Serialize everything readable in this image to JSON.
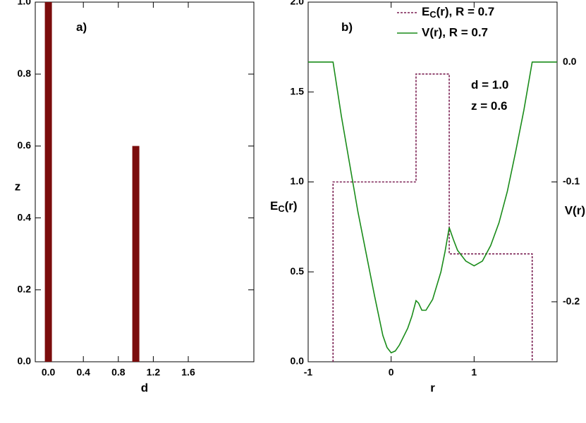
{
  "chart_data": [
    {
      "type": "bar",
      "x": [
        0,
        1.0
      ],
      "values": [
        1.0,
        0.6
      ],
      "color": "#7b0c0c",
      "xlim": [
        -0.15,
        2.35
      ],
      "ylim": [
        0,
        1
      ],
      "xticks": [
        {
          "value": 0,
          "label": "0.0"
        },
        0.4,
        0.8,
        1.2,
        1.6
      ],
      "yticks": [
        {
          "value": 0,
          "label": "0.0"
        },
        0.2,
        0.4,
        0.6,
        0.8,
        {
          "value": 1,
          "label": "1.0"
        }
      ],
      "xlabel": "d",
      "ylabel": "z",
      "annotations": [
        "a)"
      ]
    },
    {
      "type": "line",
      "xlim": [
        -1,
        2
      ],
      "ylim": [
        0,
        2
      ],
      "y2lim": [
        -0.25,
        0.05
      ],
      "xticks": [
        -1,
        0,
        1
      ],
      "yticks": [
        {
          "value": 0,
          "label": "0.0"
        },
        0.5,
        {
          "value": 1,
          "label": "1.0"
        },
        1.5,
        {
          "value": 2,
          "label": "2.0"
        }
      ],
      "y2ticks": [
        {
          "value": 0,
          "label": "0.0"
        },
        -0.1,
        -0.2
      ],
      "xlabel": "r",
      "ylabel": "EC(r)",
      "y2label": "V(r)",
      "annotations": [
        "b)",
        "d = 1.0",
        "z = 0.6"
      ],
      "series": [
        {
          "name": "EC(r), R = 0.7",
          "color": "#7a1f52",
          "dashed": true,
          "x": [
            -0.7,
            -0.7,
            0.3,
            0.3,
            0.7,
            0.7,
            1.7,
            1.7
          ],
          "values": [
            0,
            1,
            1,
            1.6,
            1.6,
            0.6,
            0.6,
            0
          ]
        },
        {
          "name": "V(r), R = 0.7",
          "color": "#1a8c1a",
          "axis": "y2",
          "x": [
            -1,
            -0.7,
            -0.6,
            -0.5,
            -0.4,
            -0.3,
            -0.2,
            -0.1,
            -0.05,
            0,
            0.05,
            0.1,
            0.2,
            0.25,
            0.3,
            0.33,
            0.37,
            0.42,
            0.5,
            0.6,
            0.65,
            0.7,
            0.75,
            0.8,
            0.9,
            1.0,
            1.1,
            1.2,
            1.3,
            1.4,
            1.5,
            1.6,
            1.7,
            2.0
          ],
          "values": [
            0,
            0,
            -0.045,
            -0.085,
            -0.125,
            -0.16,
            -0.195,
            -0.228,
            -0.238,
            -0.2425,
            -0.241,
            -0.236,
            -0.222,
            -0.212,
            -0.199,
            -0.201,
            -0.207,
            -0.207,
            -0.198,
            -0.175,
            -0.158,
            -0.138,
            -0.148,
            -0.157,
            -0.166,
            -0.17,
            -0.166,
            -0.153,
            -0.134,
            -0.108,
            -0.075,
            -0.04,
            0,
            0
          ]
        }
      ]
    }
  ]
}
